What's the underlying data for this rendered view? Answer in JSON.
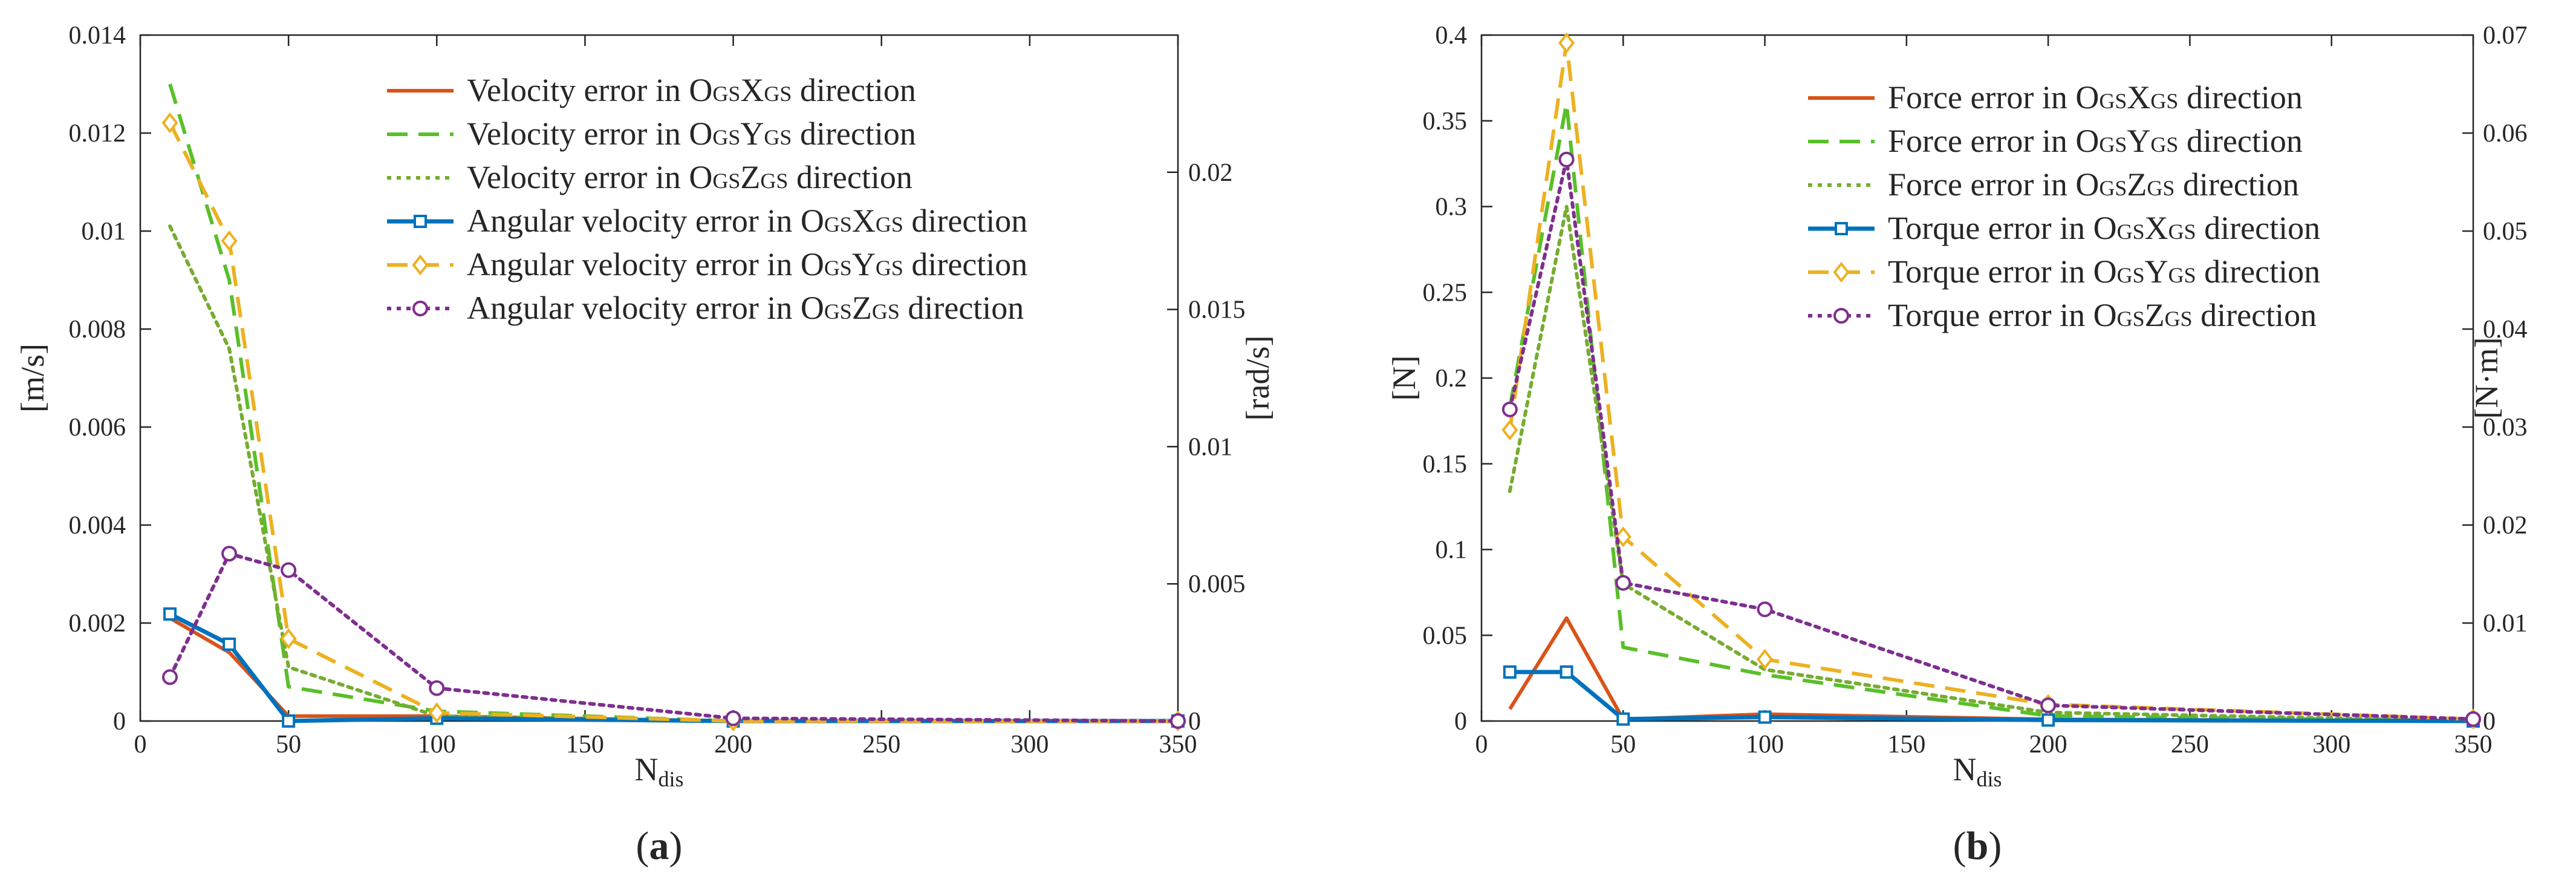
{
  "figure": {
    "panels": [
      "a",
      "b"
    ]
  },
  "chart_data": [
    {
      "panel_label": "a",
      "type": "line",
      "title": "",
      "xlabel": {
        "main": "N",
        "sub": "dis"
      },
      "ylabel": "[m/s]",
      "y2label": "[rad/s]",
      "xlim": [
        0,
        350
      ],
      "ylim": [
        0,
        0.014
      ],
      "y2lim": [
        0,
        0.025
      ],
      "grid": false,
      "xticks": [
        0,
        50,
        100,
        150,
        200,
        250,
        300,
        350
      ],
      "xtick_labels": [
        "0",
        "50",
        "100",
        "150",
        "200",
        "250",
        "300",
        "350"
      ],
      "yticks": [
        0,
        0.002,
        0.004,
        0.006,
        0.008,
        0.01,
        0.012,
        0.014
      ],
      "ytick_labels": [
        "0",
        "0.002",
        "0.004",
        "0.006",
        "0.008",
        "0.01",
        "0.012",
        "0.014"
      ],
      "y2ticks": [
        0,
        0.005,
        0.01,
        0.015,
        0.02
      ],
      "y2tick_labels": [
        "0",
        "0.005",
        "0.01",
        "0.015",
        "0.02"
      ],
      "legend_location": "top-right",
      "series": [
        {
          "name": "Velocity error in OGSXGS direction",
          "legend_parts": [
            "Velocity error in O",
            "GS",
            "X",
            "GS",
            " direction"
          ],
          "axis": "left",
          "color": "#d95319",
          "dash": "solid",
          "marker": "none",
          "x": [
            10,
            30,
            50,
            100,
            200,
            350
          ],
          "values": [
            0.0021,
            0.0014,
            0.0001,
            0.0001,
            0.0,
            0.0
          ]
        },
        {
          "name": "Velocity error in OGSYGS direction",
          "legend_parts": [
            "Velocity error in O",
            "GS",
            "Y",
            "GS",
            " direction"
          ],
          "axis": "left",
          "color": "#5abf2a",
          "dash": "dashed",
          "marker": "none",
          "x": [
            10,
            30,
            50,
            100,
            200,
            350
          ],
          "values": [
            0.013,
            0.009,
            0.0007,
            0.0002,
            0.0,
            0.0
          ]
        },
        {
          "name": "Velocity error in OGSZGS direction",
          "legend_parts": [
            "Velocity error in O",
            "GS",
            "Z",
            "GS",
            " direction"
          ],
          "axis": "left",
          "color": "#77ac30",
          "dash": "dotted",
          "marker": "none",
          "x": [
            10,
            30,
            50,
            100,
            200,
            350
          ],
          "values": [
            0.0101,
            0.0076,
            0.0011,
            0.0001,
            0.0,
            0.0
          ]
        },
        {
          "name": "Angular velocity error in OGSXGS direction",
          "legend_parts": [
            "Angular velocity error in O",
            "GS",
            "X",
            "GS",
            " direction"
          ],
          "axis": "right",
          "color": "#0072bd",
          "dash": "solid",
          "marker": "square",
          "x": [
            10,
            30,
            50,
            100,
            200,
            350
          ],
          "values": [
            0.0039,
            0.0028,
            0.0,
            0.0001,
            0.0,
            0.0
          ]
        },
        {
          "name": "Angular velocity error in OGSYGS direction",
          "legend_parts": [
            "Angular velocity error in O",
            "GS",
            "Y",
            "GS",
            " direction"
          ],
          "axis": "right",
          "color": "#edb120",
          "dash": "dashed",
          "marker": "diamond",
          "x": [
            10,
            30,
            50,
            100,
            200,
            350
          ],
          "values": [
            0.0218,
            0.0175,
            0.003,
            0.0003,
            0.0,
            0.0
          ]
        },
        {
          "name": "Angular velocity error in OGSZGS direction",
          "legend_parts": [
            "Angular velocity error in O",
            "GS",
            "Z",
            "GS",
            " direction"
          ],
          "axis": "right",
          "color": "#7e2f8e",
          "dash": "dotted",
          "marker": "circle",
          "x": [
            10,
            30,
            50,
            100,
            200,
            350
          ],
          "values": [
            0.0016,
            0.0061,
            0.0055,
            0.0012,
            0.0001,
            0.0
          ]
        }
      ]
    },
    {
      "panel_label": "b",
      "type": "line",
      "title": "",
      "xlabel": {
        "main": "N",
        "sub": "dis"
      },
      "ylabel": "[N]",
      "y2label": "[N·m]",
      "xlim": [
        0,
        350
      ],
      "ylim": [
        0,
        0.4
      ],
      "y2lim": [
        0,
        0.07
      ],
      "grid": false,
      "xticks": [
        0,
        50,
        100,
        150,
        200,
        250,
        300,
        350
      ],
      "xtick_labels": [
        "0",
        "50",
        "100",
        "150",
        "200",
        "250",
        "300",
        "350"
      ],
      "yticks": [
        0,
        0.05,
        0.1,
        0.15,
        0.2,
        0.25,
        0.3,
        0.35,
        0.4
      ],
      "ytick_labels": [
        "0",
        "0.05",
        "0.1",
        "0.15",
        "0.2",
        "0.25",
        "0.3",
        "0.35",
        "0.4"
      ],
      "y2ticks": [
        0,
        0.01,
        0.02,
        0.03,
        0.04,
        0.05,
        0.06,
        0.07
      ],
      "y2tick_labels": [
        "0",
        "0.01",
        "0.02",
        "0.03",
        "0.04",
        "0.05",
        "0.06",
        "0.07"
      ],
      "legend_location": "top-right",
      "series": [
        {
          "name": "Force error in OGSXGS direction",
          "legend_parts": [
            "Force error in O",
            "GS",
            "X",
            "GS",
            " direction"
          ],
          "axis": "left",
          "color": "#d95319",
          "dash": "solid",
          "marker": "none",
          "x": [
            10,
            30,
            50,
            100,
            200,
            350
          ],
          "values": [
            0.007,
            0.06,
            0.001,
            0.004,
            0.001,
            0.0
          ]
        },
        {
          "name": "Force error in OGSYGS direction",
          "legend_parts": [
            "Force error in O",
            "GS",
            "Y",
            "GS",
            " direction"
          ],
          "axis": "left",
          "color": "#5abf2a",
          "dash": "dashed",
          "marker": "none",
          "x": [
            10,
            30,
            50,
            100,
            200,
            350
          ],
          "values": [
            0.183,
            0.36,
            0.043,
            0.027,
            0.003,
            0.0
          ]
        },
        {
          "name": "Force error in OGSZGS direction",
          "legend_parts": [
            "Force error in O",
            "GS",
            "Z",
            "GS",
            " direction"
          ],
          "axis": "left",
          "color": "#77ac30",
          "dash": "dotted",
          "marker": "none",
          "x": [
            10,
            30,
            50,
            100,
            200,
            350
          ],
          "values": [
            0.134,
            0.3,
            0.08,
            0.03,
            0.005,
            0.0
          ]
        },
        {
          "name": "Torque error in OGSXGS direction",
          "legend_parts": [
            "Torque error in O",
            "GS",
            "X",
            "GS",
            " direction"
          ],
          "axis": "right",
          "color": "#0072bd",
          "dash": "solid",
          "marker": "square",
          "x": [
            10,
            30,
            50,
            100,
            200,
            350
          ],
          "values": [
            0.005,
            0.005,
            0.0002,
            0.0004,
            0.0001,
            0.0
          ]
        },
        {
          "name": "Torque error in OGSYGS direction",
          "legend_parts": [
            "Torque error in O",
            "GS",
            "Y",
            "GS",
            " direction"
          ],
          "axis": "right",
          "color": "#edb120",
          "dash": "dashed",
          "marker": "diamond",
          "x": [
            10,
            30,
            50,
            100,
            200,
            350
          ],
          "values": [
            0.0297,
            0.0692,
            0.0188,
            0.0063,
            0.0017,
            0.0002
          ]
        },
        {
          "name": "Torque error in OGSZGS direction",
          "legend_parts": [
            "Torque error in O",
            "GS",
            "Z",
            "GS",
            " direction"
          ],
          "axis": "right",
          "color": "#7e2f8e",
          "dash": "dotted",
          "marker": "circle",
          "x": [
            10,
            30,
            50,
            100,
            200,
            350
          ],
          "values": [
            0.0318,
            0.0573,
            0.0141,
            0.0114,
            0.0016,
            0.0002
          ]
        }
      ]
    }
  ]
}
